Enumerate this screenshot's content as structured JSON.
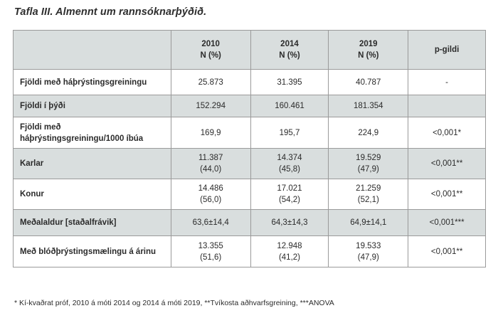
{
  "title": "Tafla III. Almennt um rannsóknarþýðið.",
  "header": {
    "col1": {
      "year": "2010",
      "unit": "N (%)"
    },
    "col2": {
      "year": "2014",
      "unit": "N (%)"
    },
    "col3": {
      "year": "2019",
      "unit": "N (%)"
    },
    "col4": "p-gildi"
  },
  "rows": [
    {
      "label": [
        "Fjöldi með háþrýstingsgreiningu"
      ],
      "c1": [
        "25.873"
      ],
      "c2": [
        "31.395"
      ],
      "c3": [
        "40.787"
      ],
      "p": "-"
    },
    {
      "label": [
        "Fjöldi í þýði"
      ],
      "c1": [
        "152.294"
      ],
      "c2": [
        "160.461"
      ],
      "c3": [
        "181.354"
      ],
      "p": ""
    },
    {
      "label": [
        "Fjöldi með",
        "háþrýstingsgreiningu/1000 íbúa"
      ],
      "c1": [
        "169,9"
      ],
      "c2": [
        "195,7"
      ],
      "c3": [
        "224,9"
      ],
      "p": "<0,001*"
    },
    {
      "label": [
        "Karlar"
      ],
      "c1": [
        "11.387",
        "(44,0)"
      ],
      "c2": [
        "14.374",
        "(45,8)"
      ],
      "c3": [
        "19.529",
        "(47,9)"
      ],
      "p": "<0,001**"
    },
    {
      "label": [
        "Konur"
      ],
      "c1": [
        "14.486",
        "(56,0)"
      ],
      "c2": [
        "17.021",
        "(54,2)"
      ],
      "c3": [
        "21.259",
        "(52,1)"
      ],
      "p": "<0,001**"
    },
    {
      "label": [
        "Meðalaldur [staðalfrávik]"
      ],
      "c1": [
        "63,6±14,4"
      ],
      "c2": [
        "64,3±14,3"
      ],
      "c3": [
        "64,9±14,1"
      ],
      "p": "<0,001***"
    },
    {
      "label": [
        "Með blóðþrýstingsmælingu á árinu"
      ],
      "c1": [
        "13.355",
        "(51,6)"
      ],
      "c2": [
        "12.948",
        "(41,2)"
      ],
      "c3": [
        "19.533",
        "(47,9)"
      ],
      "p": "<0,001**"
    }
  ],
  "footnote": "* Kí-kvaðrat próf, 2010 á móti 2014 og 2014 á móti 2019, **Tvíkosta aðhvarfsgreining, ***ANOVA"
}
